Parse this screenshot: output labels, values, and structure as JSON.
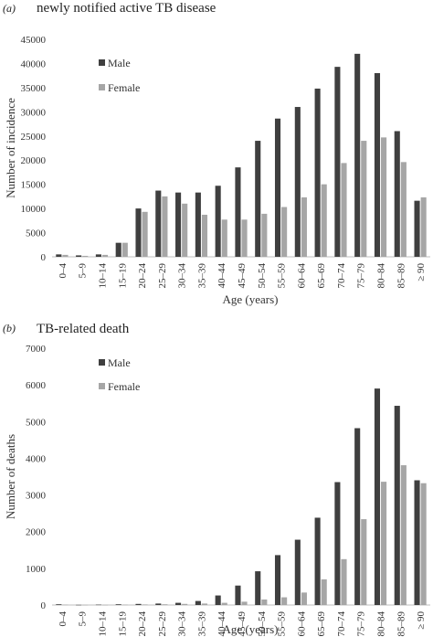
{
  "panels": [
    {
      "letter": "(a)",
      "title": "newly notified  active TB disease"
    },
    {
      "letter": "(b)",
      "title": "TB-related death"
    }
  ],
  "colors": {
    "male": "#3f3f3f",
    "female": "#a6a6a6",
    "axis": "#bfbfbf",
    "text": "#333333"
  },
  "chart_data": [
    {
      "type": "bar",
      "categories": [
        "0–4",
        "5–9",
        "10–14",
        "15–19",
        "20–24",
        "25–29",
        "30–34",
        "35–39",
        "40–44",
        "45–49",
        "50–54",
        "55–59",
        "60–64",
        "65–69",
        "70–74",
        "75–79",
        "80–84",
        "85–89",
        "≥ 90"
      ],
      "series": [
        {
          "name": "Male",
          "values": [
            500,
            300,
            500,
            2900,
            10000,
            13700,
            13300,
            13300,
            14700,
            18500,
            24000,
            28600,
            31000,
            34800,
            39300,
            42000,
            38000,
            26000,
            11600
          ]
        },
        {
          "name": "Female",
          "values": [
            400,
            200,
            400,
            2900,
            9300,
            12500,
            11000,
            8700,
            7700,
            7700,
            8900,
            10300,
            12300,
            15000,
            19400,
            24000,
            24700,
            19600,
            12300
          ]
        }
      ],
      "xlabel": "Age (years)",
      "ylabel": "Number of incidence",
      "ylim": [
        0,
        45000
      ],
      "yticks": [
        "0",
        "5000",
        "10000",
        "15000",
        "20000",
        "25000",
        "30000",
        "35000",
        "40000",
        "45000"
      ],
      "legend_position": "top-left",
      "grid": false
    },
    {
      "type": "bar",
      "categories": [
        "0–4",
        "5–9",
        "10–14",
        "15–19",
        "20–24",
        "25–29",
        "30–34",
        "35–39",
        "40–44",
        "45–49",
        "50–54",
        "55–59",
        "60–64",
        "65–69",
        "70–74",
        "75–79",
        "80–84",
        "85–89",
        "≥ 90"
      ],
      "series": [
        {
          "name": "Male",
          "values": [
            20,
            5,
            10,
            20,
            30,
            40,
            60,
            110,
            260,
            530,
            920,
            1360,
            1780,
            2380,
            3350,
            4820,
            5900,
            5430,
            3400
          ]
        },
        {
          "name": "Female",
          "values": [
            10,
            5,
            5,
            10,
            15,
            20,
            30,
            40,
            60,
            90,
            150,
            210,
            340,
            700,
            1250,
            2340,
            3360,
            3810,
            3320
          ]
        }
      ],
      "xlabel": "Age (years)",
      "ylabel": "Number of deaths",
      "ylim": [
        0,
        7000
      ],
      "yticks": [
        "0",
        "1000",
        "2000",
        "3000",
        "4000",
        "5000",
        "6000",
        "7000"
      ],
      "legend_position": "top-left",
      "grid": false
    }
  ]
}
